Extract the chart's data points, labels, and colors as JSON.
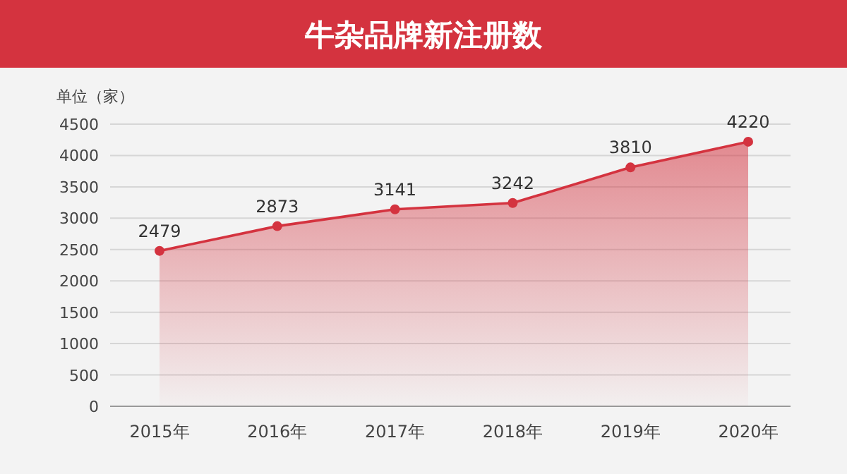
{
  "chart_data": {
    "type": "area",
    "title": "牛杂品牌新注册数",
    "ylabel": "单位（家）",
    "categories": [
      "2015年",
      "2016年",
      "2017年",
      "2018年",
      "2019年",
      "2020年"
    ],
    "series": [
      {
        "color": "#d4333f",
        "values": [
          2479,
          2873,
          3141,
          3242,
          3810,
          4220
        ]
      }
    ],
    "ylim": [
      0,
      4500
    ],
    "yticks": [
      0,
      500,
      1000,
      1500,
      2000,
      2500,
      3000,
      3500,
      4000,
      4500
    ],
    "grid": "y",
    "marker": "circle",
    "line_style": "solid",
    "data_labels": true
  }
}
